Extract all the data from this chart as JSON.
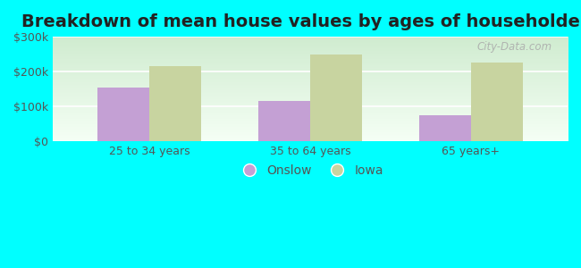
{
  "title": "Breakdown of mean house values by ages of householders",
  "categories": [
    "25 to 34 years",
    "35 to 64 years",
    "65 years+"
  ],
  "onslow_values": [
    155000,
    115000,
    75000
  ],
  "iowa_values": [
    215000,
    250000,
    225000
  ],
  "onslow_color": "#c4a0d4",
  "iowa_color": "#c8d4a0",
  "bar_width": 0.32,
  "ylim": [
    0,
    300000
  ],
  "yticks": [
    0,
    100000,
    200000,
    300000
  ],
  "ytick_labels": [
    "$0",
    "$100k",
    "$200k",
    "$300k"
  ],
  "figure_bg_color": "#00ffff",
  "legend_labels": [
    "Onslow",
    "Iowa"
  ],
  "title_fontsize": 14,
  "tick_fontsize": 9,
  "legend_fontsize": 10,
  "watermark": "City-Data.com",
  "plot_bg_top_color": "#d0ecd0",
  "plot_bg_bottom_color": "#f5fff5"
}
